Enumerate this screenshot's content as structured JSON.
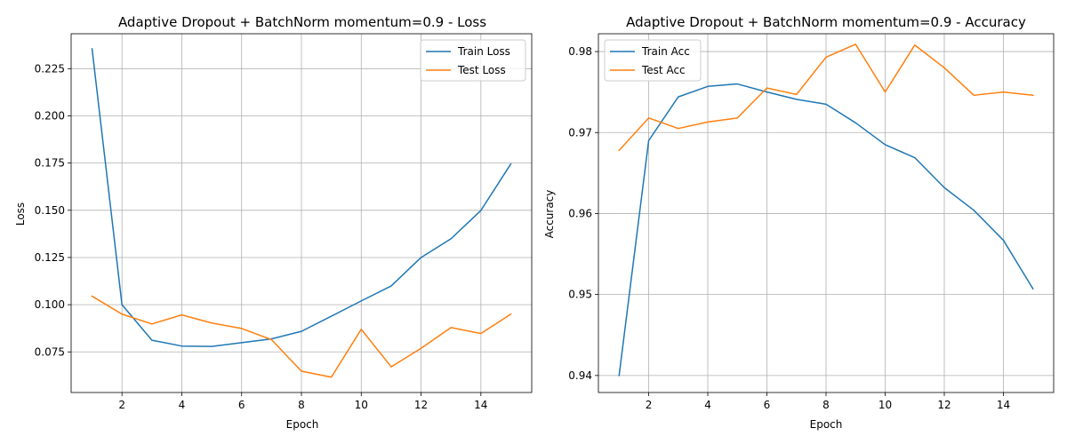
{
  "chart_data": [
    {
      "type": "line",
      "title": "Adaptive Dropout + BatchNorm momentum=0.9 - Loss",
      "xlabel": "Epoch",
      "ylabel": "Loss",
      "x": [
        1,
        2,
        3,
        4,
        5,
        6,
        7,
        8,
        9,
        10,
        11,
        12,
        13,
        14,
        15
      ],
      "xlim": [
        0.3,
        15.7
      ],
      "ylim": [
        0.0535,
        0.2435
      ],
      "xticks": [
        2,
        4,
        6,
        8,
        10,
        12,
        14
      ],
      "yticks": [
        0.075,
        0.1,
        0.125,
        0.15,
        0.175,
        0.2,
        0.225
      ],
      "ytick_labels": [
        "0.075",
        "0.100",
        "0.125",
        "0.150",
        "0.175",
        "0.200",
        "0.225"
      ],
      "grid": true,
      "legend_position": "top-right",
      "series": [
        {
          "name": "Train Loss",
          "color": "#1f77b4",
          "values": [
            0.2355,
            0.1,
            0.0812,
            0.0781,
            0.0779,
            0.0799,
            0.0819,
            0.0859,
            0.0939,
            0.102,
            0.1099,
            0.125,
            0.1349,
            0.1499,
            0.1745
          ]
        },
        {
          "name": "Test Loss",
          "color": "#ff7f0e",
          "values": [
            0.1045,
            0.095,
            0.0898,
            0.0946,
            0.0903,
            0.0874,
            0.0815,
            0.0648,
            0.0616,
            0.087,
            0.0671,
            0.0769,
            0.0879,
            0.0847,
            0.095
          ]
        }
      ]
    },
    {
      "type": "line",
      "title": "Adaptive Dropout + BatchNorm momentum=0.9 - Accuracy",
      "xlabel": "Epoch",
      "ylabel": "Accuracy",
      "x": [
        1,
        2,
        3,
        4,
        5,
        6,
        7,
        8,
        9,
        10,
        11,
        12,
        13,
        14,
        15
      ],
      "xlim": [
        0.3,
        15.7
      ],
      "ylim": [
        0.9379,
        0.9822
      ],
      "xticks": [
        2,
        4,
        6,
        8,
        10,
        12,
        14
      ],
      "yticks": [
        0.94,
        0.95,
        0.96,
        0.97,
        0.98
      ],
      "ytick_labels": [
        "0.94",
        "0.95",
        "0.96",
        "0.97",
        "0.98"
      ],
      "grid": true,
      "legend_position": "top-left",
      "series": [
        {
          "name": "Train Acc",
          "color": "#1f77b4",
          "values": [
            0.94,
            0.969,
            0.9744,
            0.9757,
            0.976,
            0.975,
            0.9741,
            0.9735,
            0.9712,
            0.9685,
            0.9669,
            0.9632,
            0.9604,
            0.9567,
            0.9507
          ]
        },
        {
          "name": "Test Acc",
          "color": "#ff7f0e",
          "values": [
            0.9678,
            0.9718,
            0.9705,
            0.9713,
            0.9718,
            0.9755,
            0.9747,
            0.9793,
            0.9809,
            0.975,
            0.9808,
            0.978,
            0.9746,
            0.975,
            0.9746
          ]
        }
      ]
    }
  ]
}
